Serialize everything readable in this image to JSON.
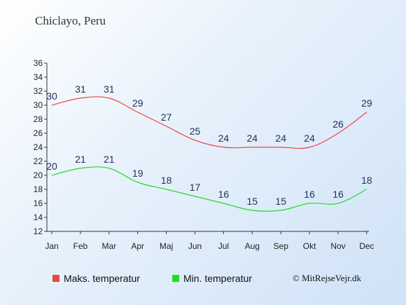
{
  "location": "Chiclayo, Peru",
  "copyright": "© MitRejseVejr.dk",
  "colors": {
    "max": "#ee4444",
    "min": "#22dd22"
  },
  "chart_data": {
    "type": "line",
    "categories": [
      "Jan",
      "Feb",
      "Mar",
      "Apr",
      "Maj",
      "Jun",
      "Jul",
      "Aug",
      "Sep",
      "Okt",
      "Nov",
      "Dec"
    ],
    "series": [
      {
        "name": "Maks. temperatur",
        "values": [
          30,
          31,
          31,
          29,
          27,
          25,
          24,
          24,
          24,
          24,
          26,
          29
        ]
      },
      {
        "name": "Min. temperatur",
        "values": [
          20,
          21,
          21,
          19,
          18,
          17,
          16,
          15,
          15,
          16,
          16,
          18
        ]
      }
    ],
    "ylim": [
      12,
      36
    ],
    "yticks": [
      12,
      14,
      16,
      18,
      20,
      22,
      24,
      26,
      28,
      30,
      32,
      34,
      36
    ],
    "legend": "bottom"
  }
}
